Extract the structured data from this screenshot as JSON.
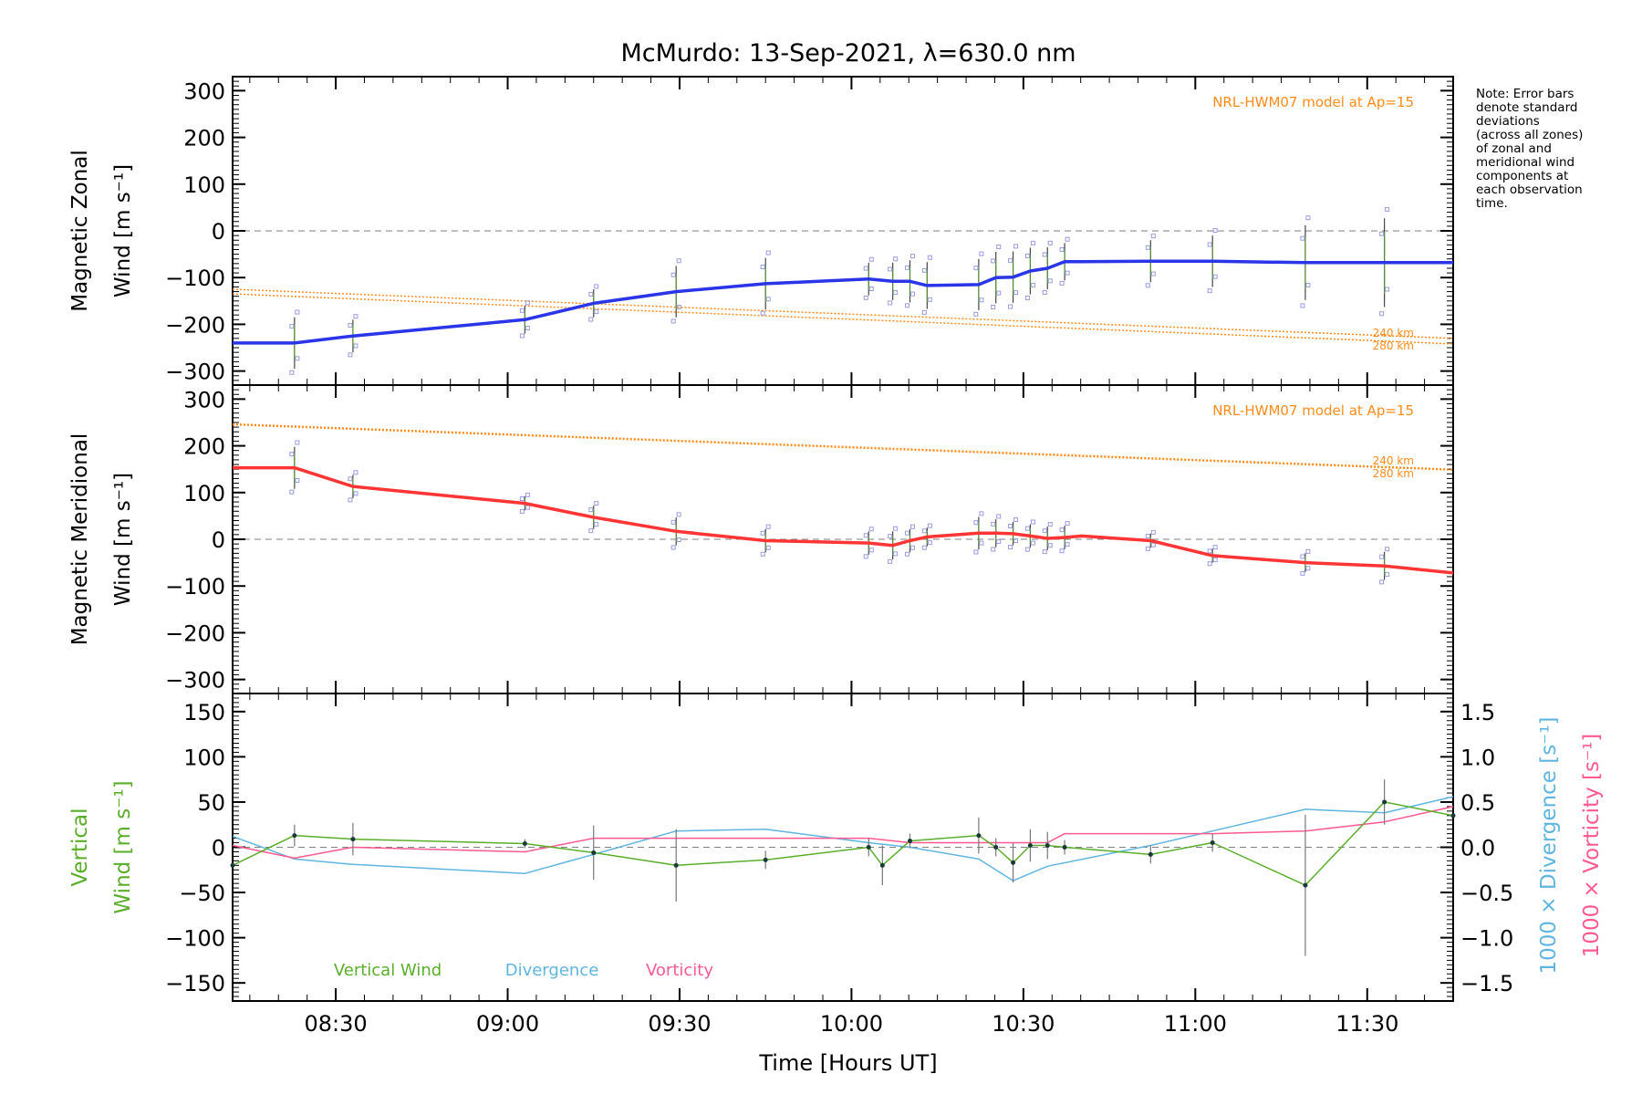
{
  "chart_data": {
    "title": "McMurdo: 13-Sep-2021, λ=630.0 nm",
    "xlabel": "Time [Hours UT]",
    "xlim": [
      8.2,
      11.75
    ],
    "xticks": [
      "08:30",
      "09:00",
      "09:30",
      "10:00",
      "10:30",
      "11:00",
      "11:30"
    ],
    "xtick_values": [
      8.5,
      9.0,
      9.5,
      10.0,
      10.5,
      11.0,
      11.5
    ],
    "note": [
      "Note: Error bars",
      "denote standard",
      "deviations",
      "(across all zones)",
      "of zonal and",
      "meridional wind",
      "components at",
      "each observation",
      "time."
    ],
    "colors": {
      "zonal": "#2a35e8",
      "meridional": "#ff3535",
      "model": "#ff8c1a",
      "vertical": "#5aae2a",
      "divergence": "#60b5e0",
      "vorticity": "#ff5a90",
      "error": "#444444",
      "zone": "#9a9ae0"
    },
    "panels": [
      {
        "type": "line",
        "name": "zonal",
        "ylabel": [
          "Magnetic Zonal",
          "Wind [m s⁻¹]"
        ],
        "ylim": [
          -330,
          330
        ],
        "yticks": [
          "300",
          "200",
          "100",
          "0",
          "−100",
          "−200",
          "−300"
        ],
        "ytick_values": [
          300,
          200,
          100,
          0,
          -100,
          -200,
          -300
        ],
        "model_label": "NRL-HWM07 model at Ap=15",
        "model_alt_labels": [
          "240 km",
          "280 km"
        ],
        "model_lines": [
          {
            "name": "240 km",
            "x": [
              8.2,
              11.75
            ],
            "y": [
              -125,
              -230
            ]
          },
          {
            "name": "280 km",
            "x": [
              8.2,
              11.75
            ],
            "y": [
              -135,
              -242
            ]
          }
        ],
        "series": {
          "name": "Magnetic Zonal Wind",
          "x": [
            8.2,
            8.38,
            8.55,
            9.05,
            9.25,
            9.49,
            9.75,
            10.05,
            10.12,
            10.17,
            10.22,
            10.37,
            10.42,
            10.47,
            10.52,
            10.57,
            10.62,
            10.67,
            10.87,
            11.05,
            11.32,
            11.55,
            11.75
          ],
          "y": [
            -240,
            -240,
            -225,
            -190,
            -155,
            -130,
            -113,
            -103,
            -108,
            -108,
            -117,
            -115,
            -100,
            -99,
            -86,
            -80,
            -66,
            -66,
            -65,
            -65,
            -68,
            -68,
            -68
          ],
          "err": [
            0,
            55,
            35,
            30,
            30,
            55,
            55,
            35,
            40,
            45,
            50,
            55,
            55,
            55,
            50,
            45,
            40,
            0,
            45,
            55,
            80,
            95,
            0
          ]
        }
      },
      {
        "type": "line",
        "name": "meridional",
        "ylabel": [
          "Magnetic Meridional",
          "Wind [m s⁻¹]"
        ],
        "ylim": [
          -330,
          330
        ],
        "yticks": [
          "300",
          "200",
          "100",
          "0",
          "−100",
          "−200",
          "−300"
        ],
        "ytick_values": [
          300,
          200,
          100,
          0,
          -100,
          -200,
          -300
        ],
        "model_label": "NRL-HWM07 model at Ap=15",
        "model_alt_labels": [
          "240 km",
          "280 km"
        ],
        "model_lines": [
          {
            "name": "240 km",
            "x": [
              8.2,
              11.75
            ],
            "y": [
              247,
              150
            ]
          },
          {
            "name": "280 km",
            "x": [
              8.2,
              11.75
            ],
            "y": [
              245,
              148
            ]
          }
        ],
        "series": {
          "name": "Magnetic Meridional Wind",
          "x": [
            8.2,
            8.38,
            8.55,
            9.05,
            9.25,
            9.49,
            9.75,
            10.05,
            10.12,
            10.17,
            10.22,
            10.37,
            10.42,
            10.47,
            10.52,
            10.57,
            10.62,
            10.67,
            10.87,
            11.05,
            11.32,
            11.55,
            11.75
          ],
          "y": [
            153,
            153,
            113,
            77,
            47,
            17,
            -3,
            -8,
            -13,
            -3,
            5,
            13,
            13,
            12,
            7,
            2,
            4,
            7,
            -3,
            -35,
            -50,
            -57,
            -72
          ],
          "err": [
            0,
            45,
            25,
            15,
            25,
            30,
            25,
            25,
            30,
            25,
            20,
            35,
            30,
            25,
            25,
            25,
            25,
            0,
            15,
            15,
            20,
            30,
            0
          ]
        }
      },
      {
        "type": "line",
        "name": "vertical",
        "ylabel": [
          "Vertical",
          "Wind [m s⁻¹]"
        ],
        "ylim": [
          -170,
          170
        ],
        "yticks": [
          "150",
          "100",
          "50",
          "0",
          "−50",
          "−100",
          "−150"
        ],
        "ytick_values": [
          150,
          100,
          50,
          0,
          -50,
          -100,
          -150
        ],
        "y2ticks": [
          "1.5",
          "1.0",
          "0.5",
          "0.0",
          "−0.5",
          "−1.0",
          "−1.5"
        ],
        "y2tick_values": [
          1.5,
          1.0,
          0.5,
          0.0,
          -0.5,
          -1.0,
          -1.5
        ],
        "y2lim": [
          -1.7,
          1.7
        ],
        "y2label_div": "1000 × Divergence [s⁻¹]",
        "y2label_vort": "1000 × Vorticity [s⁻¹]",
        "legend": [
          "Vertical Wind",
          "Divergence",
          "Vorticity"
        ],
        "series": [
          {
            "name": "Vertical Wind",
            "axis": "left",
            "x": [
              8.2,
              8.38,
              8.55,
              9.05,
              9.25,
              9.49,
              9.75,
              10.05,
              10.09,
              10.17,
              10.37,
              10.42,
              10.47,
              10.52,
              10.57,
              10.62,
              10.87,
              11.05,
              11.32,
              11.55,
              11.75
            ],
            "y": [
              -20,
              13,
              9,
              4,
              -6,
              -20,
              -14,
              0,
              -20,
              7,
              13,
              0,
              -17,
              2,
              2,
              0,
              -8,
              5,
              -42,
              50,
              35
            ],
            "err": [
              0,
              12,
              18,
              5,
              30,
              40,
              10,
              10,
              22,
              8,
              20,
              10,
              22,
              18,
              15,
              8,
              10,
              10,
              78,
              25,
              0
            ]
          },
          {
            "name": "Divergence",
            "axis": "right",
            "x": [
              8.2,
              8.38,
              8.55,
              9.05,
              9.25,
              9.49,
              9.75,
              10.05,
              10.17,
              10.37,
              10.47,
              10.57,
              10.87,
              11.05,
              11.32,
              11.55,
              11.75
            ],
            "y": [
              0.12,
              -0.13,
              -0.19,
              -0.29,
              -0.08,
              0.18,
              0.2,
              0.05,
              0.0,
              -0.13,
              -0.37,
              -0.21,
              0.02,
              0.18,
              0.42,
              0.38,
              0.56
            ]
          },
          {
            "name": "Vorticity",
            "axis": "right",
            "x": [
              8.2,
              8.38,
              8.55,
              9.05,
              9.25,
              9.49,
              9.75,
              10.05,
              10.17,
              10.37,
              10.47,
              10.57,
              10.62,
              10.87,
              11.05,
              11.32,
              11.55,
              11.75
            ],
            "y": [
              0.02,
              -0.12,
              0.0,
              -0.05,
              0.1,
              0.1,
              0.1,
              0.1,
              0.05,
              0.05,
              0.05,
              0.05,
              0.15,
              0.15,
              0.15,
              0.18,
              0.28,
              0.45
            ]
          }
        ]
      }
    ]
  }
}
